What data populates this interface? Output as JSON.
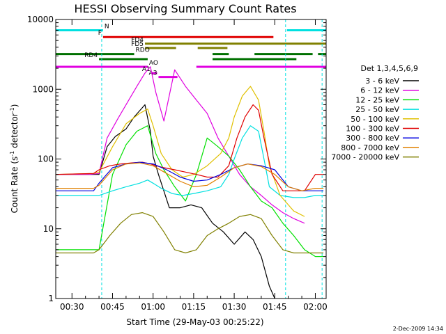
{
  "chart_data": {
    "type": "line",
    "title": "HESSI Observing Summary Count Rates",
    "xlabel": "Start Time (29-May-03 00:25:22)",
    "ylabel": "Count Rate (s⁻¹ detector⁻¹)",
    "ylabel_main": "Count Rate (s",
    "ylabel_sup1": "-1",
    "ylabel_mid": " detector",
    "ylabel_sup2": "-1",
    "ylabel_end": ")",
    "date_stamp": "2-Dec-2009 14:34",
    "y_scale": "log",
    "ylim": [
      1,
      10000
    ],
    "x_unit": "minutes after 00:00 UT",
    "xlim": [
      24,
      124
    ],
    "x_ticks": [
      {
        "value": 30,
        "label": "00:30"
      },
      {
        "value": 45,
        "label": "00:45"
      },
      {
        "value": 60,
        "label": "01:00"
      },
      {
        "value": 75,
        "label": "01:15"
      },
      {
        "value": 90,
        "label": "01:30"
      },
      {
        "value": 105,
        "label": "01:45"
      },
      {
        "value": 120,
        "label": "02:00"
      }
    ],
    "y_ticks": [
      {
        "value": 1,
        "label": "1"
      },
      {
        "value": 10,
        "label": "10"
      },
      {
        "value": 100,
        "label": "100"
      },
      {
        "value": 1000,
        "label": "1000"
      },
      {
        "value": 10000,
        "label": "10000"
      }
    ],
    "legend_title": "Det 1,3,4,5,6,9",
    "legend_position": "right",
    "grid": false,
    "series": [
      {
        "name": "3 - 6 keV",
        "color": "#000000",
        "x": [
          24,
          36,
          40,
          43,
          46,
          50,
          53,
          57,
          59,
          60,
          62,
          66,
          70,
          74,
          78,
          82,
          86,
          90,
          94,
          97,
          100,
          103,
          105
        ],
        "y": [
          60,
          60,
          60,
          150,
          210,
          270,
          400,
          600,
          250,
          110,
          60,
          20,
          20,
          22,
          20,
          12,
          9,
          6,
          9,
          7,
          4,
          1.5,
          1
        ]
      },
      {
        "name": "6 - 12 keV",
        "color": "#e000e0",
        "x": [
          24,
          36,
          40,
          43,
          47,
          51,
          54,
          57,
          59,
          61,
          64,
          68,
          72,
          76,
          80,
          84,
          88,
          92,
          96,
          100,
          104,
          108,
          112,
          116
        ],
        "y": [
          60,
          60,
          62,
          200,
          380,
          700,
          1100,
          1700,
          2100,
          900,
          350,
          1900,
          1100,
          700,
          450,
          200,
          110,
          60,
          40,
          30,
          22,
          17,
          14,
          12
        ]
      },
      {
        "name": "12 - 25 keV",
        "color": "#00e000",
        "x": [
          24,
          36,
          40,
          45,
          50,
          54,
          58,
          61,
          64,
          68,
          72,
          76,
          80,
          84,
          88,
          92,
          96,
          100,
          104,
          108,
          112,
          116,
          120,
          123
        ],
        "y": [
          5,
          5,
          5,
          60,
          160,
          250,
          300,
          120,
          70,
          40,
          25,
          60,
          200,
          150,
          110,
          70,
          40,
          25,
          20,
          12,
          8,
          5,
          4,
          4
        ]
      },
      {
        "name": "25 - 50 keV",
        "color": "#00e0e0",
        "x": [
          24,
          38,
          40,
          45,
          50,
          55,
          58,
          60,
          63,
          67,
          71,
          75,
          80,
          85,
          88,
          90,
          93,
          96,
          99,
          101,
          103,
          107,
          112,
          116,
          120,
          123
        ],
        "y": [
          30,
          30,
          30,
          35,
          40,
          45,
          50,
          45,
          38,
          32,
          30,
          32,
          35,
          40,
          60,
          100,
          200,
          300,
          250,
          100,
          40,
          30,
          28,
          28,
          30,
          30
        ]
      },
      {
        "name": "50 - 100 keV",
        "color": "#e0c000",
        "x": [
          24,
          38,
          40,
          45,
          50,
          55,
          58,
          60,
          63,
          67,
          71,
          75,
          80,
          85,
          88,
          90,
          93,
          96,
          99,
          101,
          103,
          107,
          112,
          116
        ],
        "y": [
          60,
          62,
          65,
          150,
          320,
          450,
          520,
          300,
          120,
          70,
          55,
          60,
          80,
          120,
          200,
          400,
          800,
          1100,
          700,
          250,
          80,
          30,
          18,
          15
        ]
      },
      {
        "name": "100 - 300 keV",
        "color": "#e00000",
        "x": [
          24,
          38,
          40,
          44,
          48,
          52,
          56,
          59,
          61,
          64,
          68,
          72,
          76,
          80,
          84,
          88,
          91,
          94,
          97,
          99,
          101,
          104,
          108,
          112,
          116,
          120,
          123
        ],
        "y": [
          60,
          62,
          70,
          80,
          85,
          88,
          90,
          85,
          80,
          75,
          70,
          65,
          60,
          55,
          55,
          80,
          200,
          400,
          600,
          500,
          200,
          60,
          35,
          35,
          35,
          60,
          60
        ]
      },
      {
        "name": "300 - 800 keV",
        "color": "#0000e0",
        "x": [
          24,
          38,
          40,
          45,
          50,
          55,
          60,
          65,
          70,
          75,
          80,
          85,
          90,
          95,
          100,
          105,
          110,
          115,
          120,
          123
        ],
        "y": [
          35,
          35,
          45,
          75,
          85,
          90,
          85,
          70,
          55,
          48,
          50,
          60,
          75,
          85,
          80,
          70,
          40,
          35,
          35,
          35
        ]
      },
      {
        "name": "800 - 7000 keV",
        "color": "#e08000",
        "x": [
          24,
          38,
          40,
          45,
          50,
          55,
          60,
          65,
          70,
          75,
          80,
          85,
          90,
          95,
          100,
          105,
          110,
          115,
          120,
          123
        ],
        "y": [
          38,
          38,
          42,
          70,
          85,
          88,
          80,
          62,
          48,
          40,
          42,
          55,
          75,
          85,
          78,
          60,
          40,
          35,
          38,
          38
        ]
      },
      {
        "name": "7000 - 20000 keV",
        "color": "#808000",
        "x": [
          24,
          38,
          40,
          44,
          48,
          52,
          56,
          60,
          64,
          68,
          72,
          76,
          80,
          84,
          88,
          92,
          96,
          100,
          104,
          108,
          112,
          116,
          120,
          123
        ],
        "y": [
          4.5,
          4.5,
          5,
          8,
          12,
          16,
          17,
          15,
          9,
          5,
          4.5,
          5,
          8,
          10,
          12,
          15,
          16,
          14,
          8,
          5,
          4.5,
          4.5,
          4.5,
          4.5
        ]
      }
    ],
    "state_bars": [
      {
        "label": "N",
        "color": "#00e0e0",
        "y_value": 7000,
        "segments": [
          [
            24,
            41.5
          ],
          [
            109.5,
            124
          ]
        ]
      },
      {
        "label": "F",
        "color": "#e00000",
        "y_value": 5600,
        "segments": [
          [
            41.5,
            104.5
          ]
        ]
      },
      {
        "label": "FD4",
        "color": "#808000",
        "y_value": 4500,
        "segments": [
          [
            57,
            124
          ]
        ]
      },
      {
        "label": "FD5",
        "color": "#808000",
        "y_value": 3900,
        "segments": [
          [
            57,
            68.5
          ],
          [
            76.5,
            87.5
          ]
        ]
      },
      {
        "label": "RDO",
        "color": "#007000",
        "y_value": 3200,
        "segments": [
          [
            24,
            53
          ],
          [
            82,
            88
          ],
          [
            97.5,
            119
          ],
          [
            121,
            124
          ]
        ]
      },
      {
        "label": "RD4",
        "color": "#007000",
        "y_value": 2700,
        "segments": [
          [
            40,
            58
          ],
          [
            82,
            113
          ]
        ]
      },
      {
        "label": "AO",
        "color": "#e000e0",
        "y_value": 2100,
        "segments": [
          [
            24,
            58
          ],
          [
            76,
            124
          ]
        ]
      },
      {
        "label": "A1",
        "color": "#e000e0",
        "y_value": 1700,
        "segments": [
          [
            59.5,
            61.5
          ]
        ]
      },
      {
        "label": "A3",
        "color": "#e000e0",
        "y_value": 1500,
        "segments": [
          [
            62,
            69
          ]
        ]
      }
    ],
    "vertical_markers": [
      {
        "x": 41,
        "color": "#00e0e0"
      },
      {
        "x": 109,
        "color": "#00e0e0"
      },
      {
        "x": 122.5,
        "color": "#00e0e0"
      }
    ]
  }
}
